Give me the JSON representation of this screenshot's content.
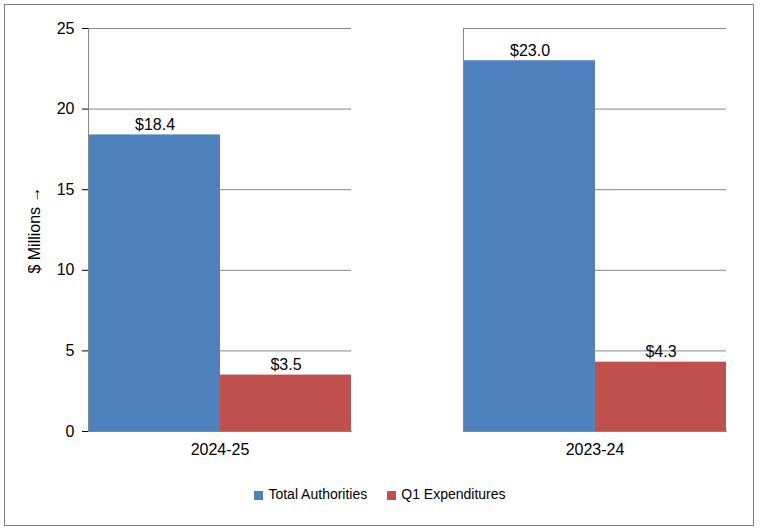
{
  "chart_data": {
    "type": "bar",
    "categories": [
      "2024-25",
      "2023-24"
    ],
    "series": [
      {
        "name": "Total Authorities",
        "color": "#4f81bd",
        "values": [
          18.4,
          23.0
        ],
        "value_labels": [
          "$18.4",
          "$23.0"
        ]
      },
      {
        "name": "Q1 Expenditures",
        "color": "#c0504d",
        "values": [
          3.5,
          4.3
        ],
        "value_labels": [
          "$3.5",
          "$4.3"
        ]
      }
    ],
    "y_label": "$ Millions",
    "ylim": [
      0,
      25
    ],
    "yticks": [
      0,
      5,
      10,
      15,
      20,
      25
    ],
    "grid": true,
    "legend": "bottom",
    "data_labels": true
  }
}
